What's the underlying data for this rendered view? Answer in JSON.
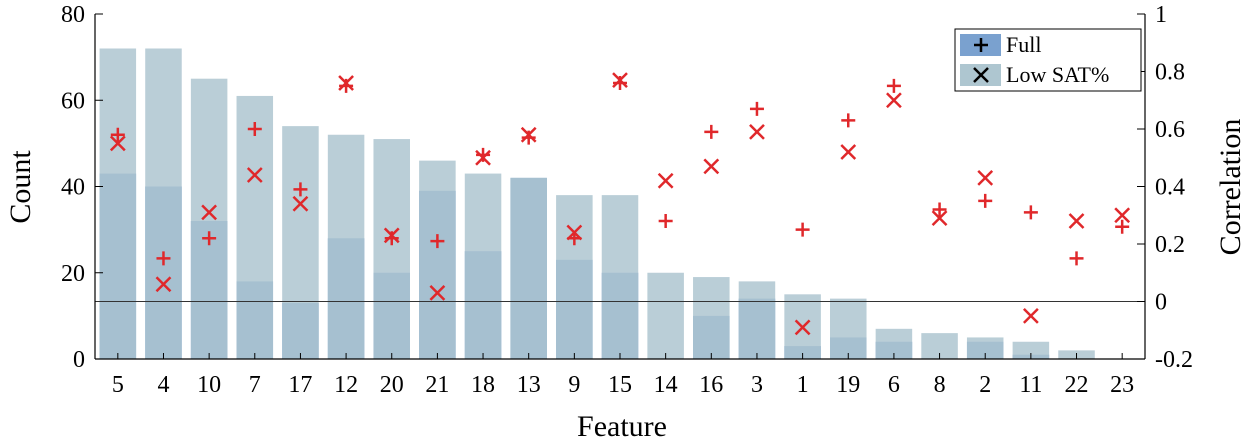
{
  "chart_data": {
    "type": "bar",
    "xlabel": "Feature",
    "ylabel_left": "Count",
    "ylabel_right": "Correlation",
    "categories": [
      "5",
      "4",
      "10",
      "7",
      "17",
      "12",
      "20",
      "21",
      "18",
      "13",
      "9",
      "15",
      "14",
      "16",
      "3",
      "1",
      "19",
      "6",
      "8",
      "2",
      "11",
      "22",
      "23"
    ],
    "ylim_left": [
      0,
      80
    ],
    "yticks_left": [
      0,
      20,
      40,
      60,
      80
    ],
    "ylim_right": [
      -0.2,
      1
    ],
    "yticks_right": [
      "-0.2",
      "0",
      "0.2",
      "0.4",
      "0.6",
      "0.8",
      "1"
    ],
    "bar_series": [
      {
        "name": "Full",
        "color": "#7aa1cf",
        "values": [
          43,
          40,
          32,
          18,
          13,
          28,
          20,
          39,
          25,
          42,
          23,
          20,
          0,
          10,
          14,
          3,
          5,
          4,
          0,
          4,
          1,
          0,
          0
        ]
      },
      {
        "name": "Low SAT%",
        "color": "#aec6d0",
        "values": [
          72,
          72,
          65,
          61,
          54,
          52,
          51,
          46,
          43,
          42,
          38,
          38,
          20,
          19,
          18,
          15,
          14,
          7,
          6,
          5,
          4,
          2,
          0
        ]
      }
    ],
    "scatter_series": [
      {
        "name": "Full",
        "marker": "+",
        "color": "#e0282b",
        "values": [
          0.58,
          0.15,
          0.22,
          0.6,
          0.39,
          0.75,
          0.22,
          0.21,
          0.51,
          0.57,
          0.22,
          0.76,
          0.28,
          0.59,
          0.67,
          0.25,
          0.63,
          0.75,
          0.32,
          0.35,
          0.31,
          0.15,
          0.26
        ]
      },
      {
        "name": "Low SAT%",
        "marker": "x",
        "color": "#e0282b",
        "values": [
          0.55,
          0.06,
          0.31,
          0.44,
          0.34,
          0.76,
          0.23,
          0.03,
          0.5,
          0.58,
          0.24,
          0.77,
          0.42,
          0.47,
          0.59,
          -0.09,
          0.52,
          0.7,
          0.29,
          0.43,
          -0.05,
          0.28,
          0.3
        ]
      }
    ],
    "zero_line": 0,
    "legend": {
      "position": "top-right",
      "labels": [
        "Full",
        "Low SAT%"
      ]
    }
  }
}
